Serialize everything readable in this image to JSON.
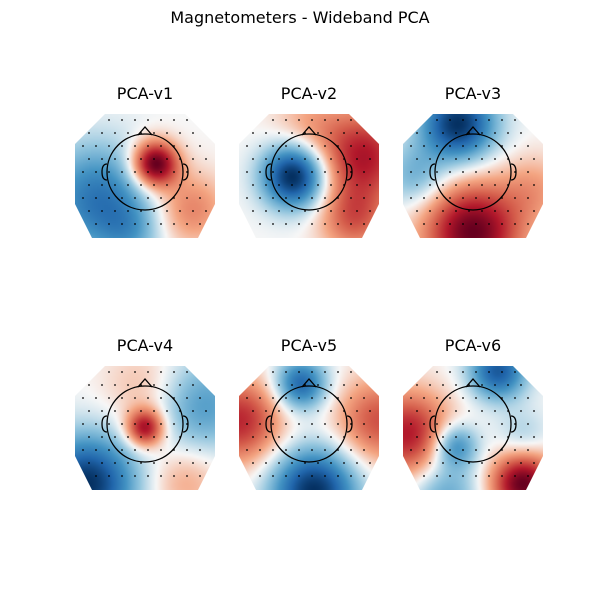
{
  "figure": {
    "title": "Magnetometers - Wideband PCA"
  },
  "chart_data": {
    "type": "heatmap",
    "title": "Magnetometers - Wideband PCA",
    "layout": "2 rows x 3 columns of topographic maps",
    "colormap": "RdBu_r (blue = negative, red = positive)",
    "grid": false,
    "maps": [
      {
        "name": "PCA-v1",
        "description": "positive red peak right-center, negative blue on left and lower left"
      },
      {
        "name": "PCA-v2",
        "description": "negative blue centered left-of-center, positive red on right"
      },
      {
        "name": "PCA-v3",
        "description": "negative blue at top, positive red at bottom"
      },
      {
        "name": "PCA-v4",
        "description": "small positive red focus at center, negative blue toward lower left and right"
      },
      {
        "name": "PCA-v5",
        "description": "negative blue at top-center and bottom, positive red on left and right sides"
      },
      {
        "name": "PCA-v6",
        "description": "positive red on left and lower right, negative blue at top right and lower center"
      }
    ]
  }
}
